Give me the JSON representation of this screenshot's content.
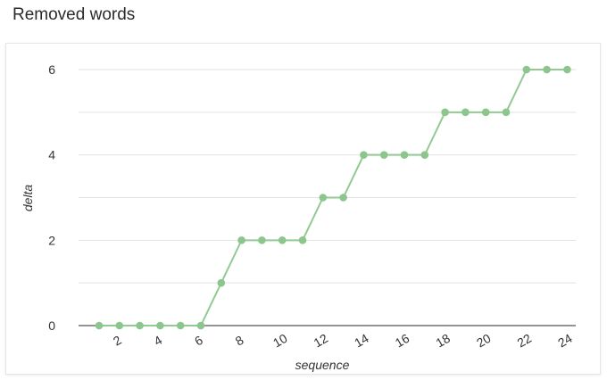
{
  "title": "Removed words",
  "chart_data": {
    "type": "line",
    "title": "Removed words",
    "xlabel": "sequence",
    "ylabel": "delta",
    "x": [
      1,
      2,
      3,
      4,
      5,
      6,
      7,
      8,
      9,
      10,
      11,
      12,
      13,
      14,
      15,
      16,
      17,
      18,
      19,
      20,
      21,
      22,
      23,
      24
    ],
    "series": [
      {
        "values": [
          0,
          0,
          0,
          0,
          0,
          0,
          1,
          2,
          2,
          2,
          2,
          3,
          3,
          4,
          4,
          4,
          4,
          5,
          5,
          5,
          5,
          6,
          6,
          6
        ]
      }
    ],
    "xticks": [
      2,
      4,
      6,
      8,
      10,
      12,
      14,
      16,
      18,
      20,
      22,
      24
    ],
    "yticks": [
      0,
      2,
      4,
      6
    ],
    "xlim": [
      0,
      25
    ],
    "ylim": [
      0,
      6.5
    ],
    "grid": true,
    "line_color": "#93c993",
    "point_color": "#8cc68c"
  }
}
